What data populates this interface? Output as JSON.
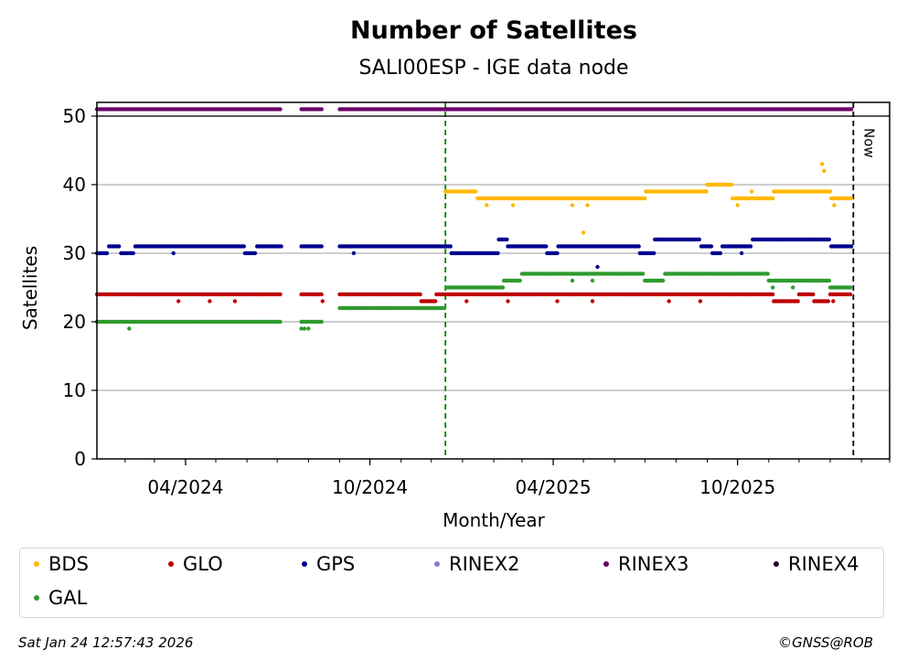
{
  "chart_data": {
    "type": "scatter",
    "title": "Number of Satellites",
    "subtitle": "SALI00ESP - IGE data node",
    "xlabel": "Month/Year",
    "ylabel": "Satellites",
    "x_range": [
      "2024-01-04",
      "2026-03-01"
    ],
    "ylim": [
      0,
      52
    ],
    "yticks": [
      0,
      10,
      20,
      30,
      40,
      50
    ],
    "xticks": [
      {
        "date": "2024-04-01",
        "label": "04/2024"
      },
      {
        "date": "2024-10-01",
        "label": "10/2024"
      },
      {
        "date": "2025-04-01",
        "label": "04/2025"
      },
      {
        "date": "2025-10-01",
        "label": "10/2025"
      }
    ],
    "grid": "horizontal",
    "legend_placement": "below",
    "markers": [
      {
        "date": "2024-12-15",
        "color": "#008000",
        "label": ""
      },
      {
        "date": "2026-01-24",
        "color": "#000000",
        "label": "Now"
      }
    ],
    "series": [
      {
        "name": "BDS",
        "color": "#FFB800",
        "segments": [
          {
            "start": "2024-12-15",
            "end": "2025-01-15",
            "value": 39
          },
          {
            "start": "2025-01-16",
            "end": "2025-07-01",
            "value": 38
          },
          {
            "start": "2025-07-02",
            "end": "2025-08-31",
            "value": 39
          },
          {
            "start": "2025-09-01",
            "end": "2025-09-25",
            "value": 40
          },
          {
            "start": "2025-09-26",
            "end": "2025-11-05",
            "value": 38
          },
          {
            "start": "2025-11-06",
            "end": "2026-01-01",
            "value": 39
          },
          {
            "start": "2026-01-02",
            "end": "2026-01-22",
            "value": 38
          }
        ],
        "points": [
          {
            "date": "2025-01-25",
            "value": 37
          },
          {
            "date": "2025-02-20",
            "value": 37
          },
          {
            "date": "2025-04-20",
            "value": 37
          },
          {
            "date": "2025-05-01",
            "value": 33
          },
          {
            "date": "2025-05-05",
            "value": 37
          },
          {
            "date": "2025-10-01",
            "value": 37
          },
          {
            "date": "2025-10-15",
            "value": 39
          },
          {
            "date": "2025-12-24",
            "value": 43
          },
          {
            "date": "2025-12-26",
            "value": 42
          },
          {
            "date": "2026-01-05",
            "value": 37
          }
        ]
      },
      {
        "name": "GLO",
        "color": "#C00000",
        "segments": [
          {
            "start": "2024-01-04",
            "end": "2024-07-05",
            "value": 24
          },
          {
            "start": "2024-07-25",
            "end": "2024-08-15",
            "value": 24
          },
          {
            "start": "2024-09-01",
            "end": "2024-11-20",
            "value": 24
          },
          {
            "start": "2024-11-21",
            "end": "2024-12-05",
            "value": 23
          },
          {
            "start": "2024-12-06",
            "end": "2025-11-05",
            "value": 24
          },
          {
            "start": "2025-11-06",
            "end": "2025-11-30",
            "value": 23
          },
          {
            "start": "2025-12-01",
            "end": "2025-12-15",
            "value": 24
          },
          {
            "start": "2025-12-16",
            "end": "2025-12-31",
            "value": 23
          },
          {
            "start": "2026-01-01",
            "end": "2026-01-22",
            "value": 24
          }
        ],
        "points": [
          {
            "date": "2024-03-25",
            "value": 23
          },
          {
            "date": "2024-04-25",
            "value": 23
          },
          {
            "date": "2024-05-20",
            "value": 23
          },
          {
            "date": "2024-08-15",
            "value": 23
          },
          {
            "date": "2025-01-05",
            "value": 23
          },
          {
            "date": "2025-02-15",
            "value": 23
          },
          {
            "date": "2025-04-05",
            "value": 23
          },
          {
            "date": "2025-05-10",
            "value": 23
          },
          {
            "date": "2025-07-25",
            "value": 23
          },
          {
            "date": "2025-08-25",
            "value": 23
          },
          {
            "date": "2026-01-04",
            "value": 23
          }
        ]
      },
      {
        "name": "GPS",
        "color": "#000090",
        "segments": [
          {
            "start": "2024-01-04",
            "end": "2024-01-15",
            "value": 30
          },
          {
            "start": "2024-01-16",
            "end": "2024-01-27",
            "value": 31
          },
          {
            "start": "2024-01-28",
            "end": "2024-02-10",
            "value": 30
          },
          {
            "start": "2024-02-11",
            "end": "2024-05-29",
            "value": 31
          },
          {
            "start": "2024-05-30",
            "end": "2024-06-10",
            "value": 30
          },
          {
            "start": "2024-06-11",
            "end": "2024-07-05",
            "value": 31
          },
          {
            "start": "2024-07-25",
            "end": "2024-08-15",
            "value": 31
          },
          {
            "start": "2024-09-01",
            "end": "2024-12-20",
            "value": 31
          },
          {
            "start": "2024-12-21",
            "end": "2025-02-05",
            "value": 30
          },
          {
            "start": "2025-02-06",
            "end": "2025-02-14",
            "value": 32
          },
          {
            "start": "2025-02-15",
            "end": "2025-03-25",
            "value": 31
          },
          {
            "start": "2025-03-26",
            "end": "2025-04-05",
            "value": 30
          },
          {
            "start": "2025-04-06",
            "end": "2025-06-25",
            "value": 31
          },
          {
            "start": "2025-06-26",
            "end": "2025-07-10",
            "value": 30
          },
          {
            "start": "2025-07-11",
            "end": "2025-08-25",
            "value": 32
          },
          {
            "start": "2025-08-26",
            "end": "2025-09-05",
            "value": 31
          },
          {
            "start": "2025-09-06",
            "end": "2025-09-15",
            "value": 30
          },
          {
            "start": "2025-09-16",
            "end": "2025-10-15",
            "value": 31
          },
          {
            "start": "2025-10-16",
            "end": "2026-01-01",
            "value": 32
          },
          {
            "start": "2026-01-02",
            "end": "2026-01-22",
            "value": 31
          }
        ],
        "points": [
          {
            "date": "2024-03-20",
            "value": 30
          },
          {
            "date": "2024-09-15",
            "value": 30
          },
          {
            "date": "2025-05-15",
            "value": 28
          },
          {
            "date": "2025-10-05",
            "value": 30
          }
        ]
      },
      {
        "name": "RINEX2",
        "color": "#8878C8",
        "segments": [],
        "points": []
      },
      {
        "name": "RINEX3",
        "color": "#6A006A",
        "segments": [
          {
            "start": "2024-01-04",
            "end": "2024-07-05",
            "value": 51
          },
          {
            "start": "2024-07-25",
            "end": "2024-08-15",
            "value": 51
          },
          {
            "start": "2024-09-01",
            "end": "2026-01-22",
            "value": 51
          }
        ],
        "points": []
      },
      {
        "name": "RINEX4",
        "color": "#200020",
        "segments": [],
        "points": []
      },
      {
        "name": "GAL",
        "color": "#2E9A2E",
        "segments": [
          {
            "start": "2024-01-04",
            "end": "2024-07-05",
            "value": 20
          },
          {
            "start": "2024-07-25",
            "end": "2024-08-15",
            "value": 20
          },
          {
            "start": "2024-09-01",
            "end": "2024-12-15",
            "value": 22
          },
          {
            "start": "2024-12-16",
            "end": "2025-02-10",
            "value": 25
          },
          {
            "start": "2025-02-11",
            "end": "2025-02-28",
            "value": 26
          },
          {
            "start": "2025-03-01",
            "end": "2025-06-30",
            "value": 27
          },
          {
            "start": "2025-07-01",
            "end": "2025-07-20",
            "value": 26
          },
          {
            "start": "2025-07-21",
            "end": "2025-10-31",
            "value": 27
          },
          {
            "start": "2025-11-01",
            "end": "2025-12-31",
            "value": 26
          },
          {
            "start": "2026-01-01",
            "end": "2026-01-22",
            "value": 25
          }
        ],
        "points": [
          {
            "date": "2024-02-05",
            "value": 19
          },
          {
            "date": "2024-07-25",
            "value": 19
          },
          {
            "date": "2024-07-28",
            "value": 19
          },
          {
            "date": "2024-08-01",
            "value": 19
          },
          {
            "date": "2025-04-20",
            "value": 26
          },
          {
            "date": "2025-05-10",
            "value": 26
          },
          {
            "date": "2025-11-05",
            "value": 25
          },
          {
            "date": "2025-11-25",
            "value": 25
          }
        ]
      }
    ]
  },
  "legend": {
    "items": [
      {
        "label": "BDS",
        "color": "#FFB800"
      },
      {
        "label": "GLO",
        "color": "#C00000"
      },
      {
        "label": "GPS",
        "color": "#000090"
      },
      {
        "label": "RINEX2",
        "color": "#8878C8"
      },
      {
        "label": "RINEX3",
        "color": "#6A006A"
      },
      {
        "label": "RINEX4",
        "color": "#200020"
      },
      {
        "label": "GAL",
        "color": "#2E9A2E"
      }
    ]
  },
  "footer": {
    "timestamp": "Sat Jan 24 12:57:43 2026",
    "copyright": "©GNSS@ROB"
  }
}
